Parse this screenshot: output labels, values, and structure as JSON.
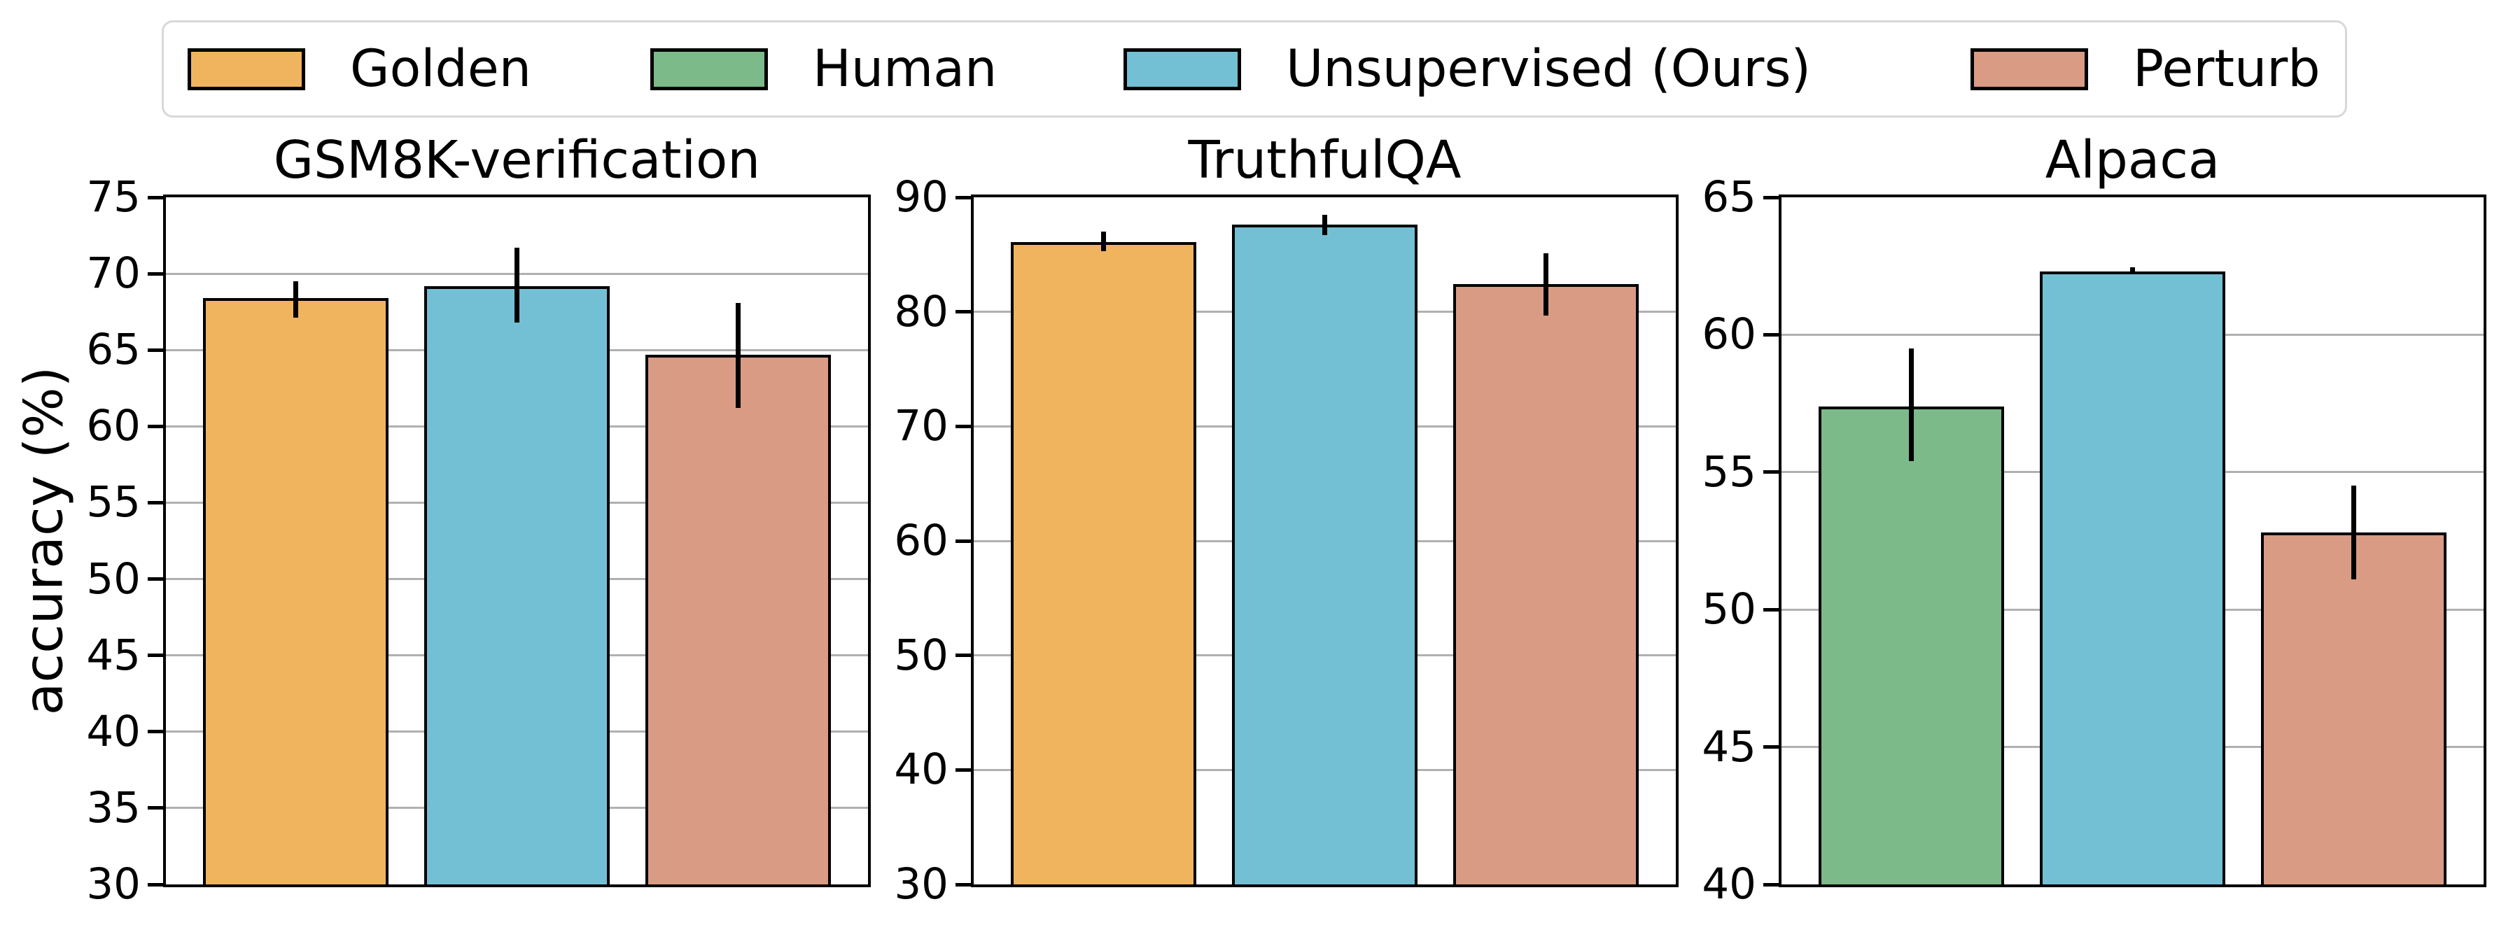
{
  "figure": {
    "background": "#ffffff"
  },
  "legend": {
    "items": [
      {
        "label": "Golden",
        "series": "Golden"
      },
      {
        "label": "Human",
        "series": "Human"
      },
      {
        "label": "Unsupervised (Ours)",
        "series": "Unsupervised (Ours)"
      },
      {
        "label": "Perturb",
        "series": "Perturb"
      }
    ]
  },
  "colors": {
    "Golden": "#f0b45f",
    "Human": "#7cba8a",
    "Unsupervised (Ours)": "#73c0d5",
    "Perturb": "#d99b84",
    "bar_edge": "#000000",
    "gridline": "#b0b0b0",
    "legend_border": "#d8d8d8"
  },
  "axes": {
    "ylabel": "accuracy (%)"
  },
  "chart_data": [
    {
      "type": "bar",
      "title": "GSM8K-verification",
      "ylabel": "accuracy (%)",
      "ylim": [
        30,
        75
      ],
      "ytick_step": 5,
      "grid": true,
      "legend_position": "top",
      "bars": [
        {
          "series": "Golden",
          "value": 68.4,
          "err_low": 67.1,
          "err_high": 69.5
        },
        {
          "series": "Unsupervised (Ours)",
          "value": 69.2,
          "err_low": 66.8,
          "err_high": 71.7
        },
        {
          "series": "Perturb",
          "value": 64.7,
          "err_low": 61.2,
          "err_high": 68.1
        }
      ]
    },
    {
      "type": "bar",
      "title": "TruthfulQA",
      "ylabel": "accuracy (%)",
      "ylim": [
        30,
        90
      ],
      "ytick_step": 10,
      "grid": true,
      "legend_position": "top",
      "bars": [
        {
          "series": "Golden",
          "value": 86.1,
          "err_low": 85.3,
          "err_high": 87.0
        },
        {
          "series": "Unsupervised (Ours)",
          "value": 87.6,
          "err_low": 86.7,
          "err_high": 88.5
        },
        {
          "series": "Perturb",
          "value": 82.4,
          "err_low": 79.7,
          "err_high": 85.1
        }
      ]
    },
    {
      "type": "bar",
      "title": "Alpaca",
      "ylabel": "accuracy (%)",
      "ylim": [
        40,
        65
      ],
      "ytick_step": 5,
      "grid": true,
      "legend_position": "top",
      "bars": [
        {
          "series": "Human",
          "value": 57.4,
          "err_low": 55.4,
          "err_high": 59.5
        },
        {
          "series": "Unsupervised (Ours)",
          "value": 62.3,
          "err_low": 62.2,
          "err_high": 62.45
        },
        {
          "series": "Perturb",
          "value": 52.8,
          "err_low": 51.1,
          "err_high": 54.5
        }
      ]
    }
  ]
}
